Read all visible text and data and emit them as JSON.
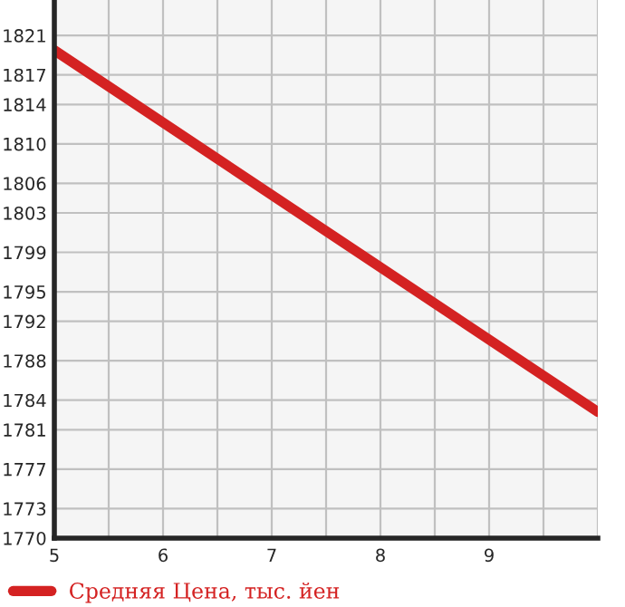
{
  "chart_data": {
    "type": "line",
    "x": [
      5,
      10
    ],
    "series": [
      {
        "name": "Средняя Цена, тыс. йен",
        "color": "#d42222",
        "values": [
          1819.5,
          1782.8
        ]
      }
    ],
    "xlim": [
      5,
      10
    ],
    "ylim": [
      1770,
      1824.6
    ],
    "xticks": [
      5,
      {
        "value": 5.5,
        "label": null
      },
      6,
      {
        "value": 6.5,
        "label": null
      },
      7,
      {
        "value": 7.5,
        "label": null
      },
      8,
      {
        "value": 8.5,
        "label": null
      },
      9,
      {
        "value": 9.5,
        "label": null
      },
      {
        "value": 10,
        "label": null
      }
    ],
    "yticks": [
      1770,
      1773,
      1777,
      1781,
      1784,
      1788,
      1792,
      1795,
      1799,
      1803,
      1806,
      1810,
      1814,
      1817,
      1821
    ],
    "grid": true,
    "legend": "bottom",
    "marker": "none",
    "line_style": "solid"
  }
}
